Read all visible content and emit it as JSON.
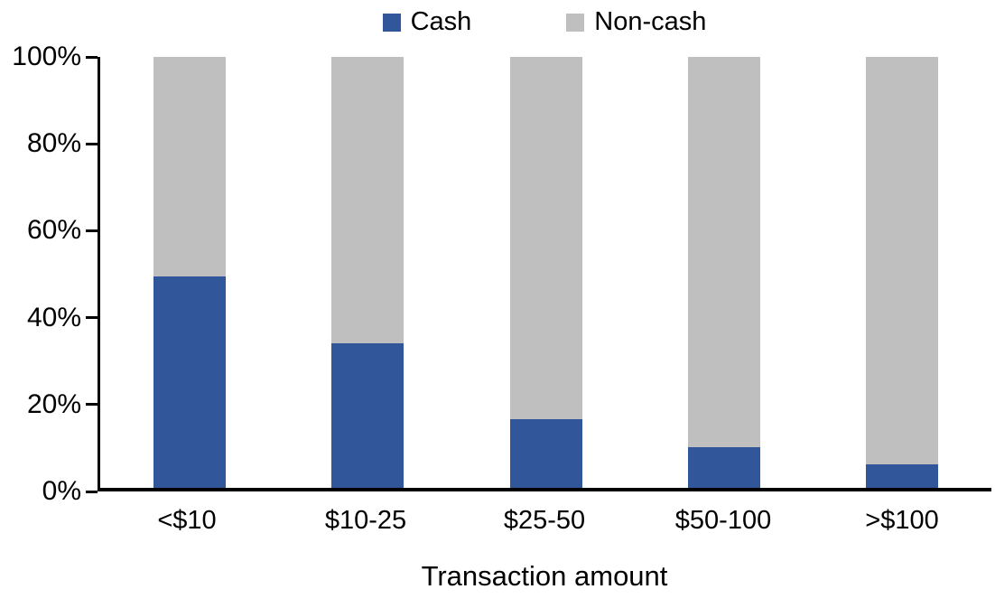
{
  "chart_data": {
    "type": "bar",
    "stacked": true,
    "percent_stacked": true,
    "title": "",
    "xlabel": "Transaction amount",
    "ylabel": "",
    "categories": [
      "<$10",
      "$10-25",
      "$25-50",
      "$50-100",
      ">$100"
    ],
    "series": [
      {
        "name": "Cash",
        "color": "#31569A",
        "values": [
          49,
          33.5,
          16,
          9.5,
          5.5
        ]
      },
      {
        "name": "Non-cash",
        "color": "#BFBFBF",
        "values": [
          51,
          66.5,
          84,
          90.5,
          94.5
        ]
      }
    ],
    "y_ticks": [
      "0%",
      "20%",
      "40%",
      "60%",
      "80%",
      "100%"
    ],
    "ylim": [
      0,
      100
    ],
    "legend_position": "top-center",
    "grid": false,
    "axis_color": "#000000",
    "text_color": "#000000",
    "background": "#FFFFFF"
  }
}
